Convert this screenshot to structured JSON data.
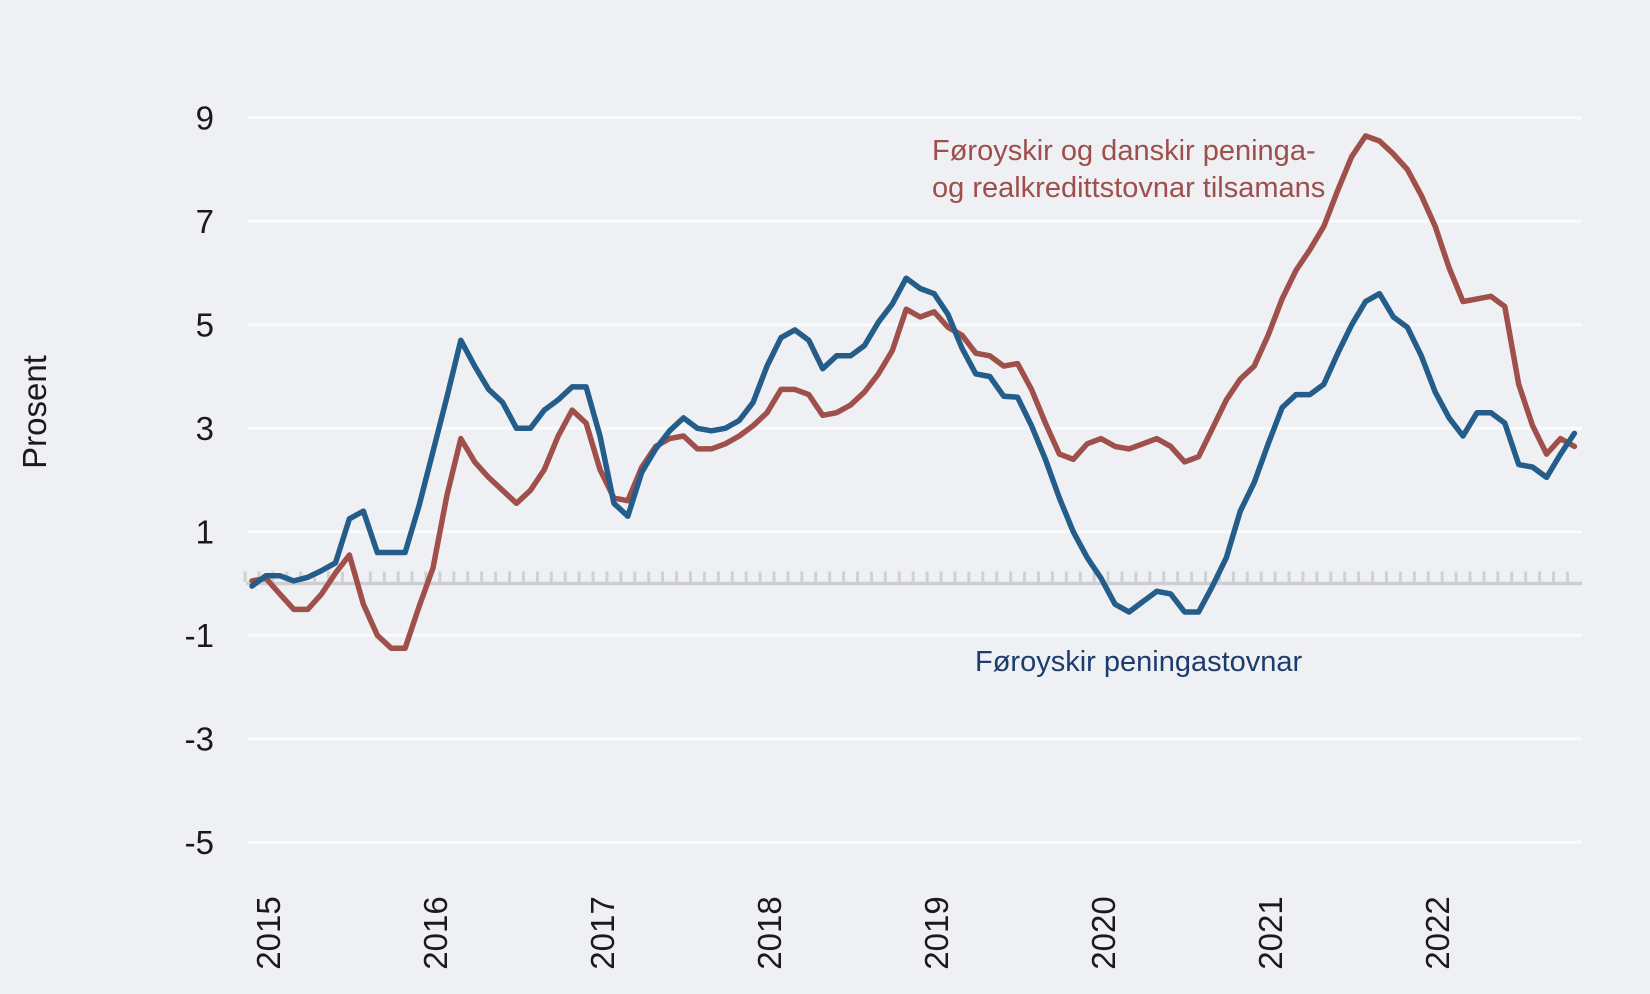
{
  "y_axis": {
    "title": "Prosent",
    "ticks": [
      9,
      7,
      5,
      3,
      1,
      -1,
      -3,
      -5
    ]
  },
  "x_axis": {
    "year_labels": [
      "2015",
      "2016",
      "2017",
      "2018",
      "2019",
      "2020",
      "2021",
      "2022"
    ]
  },
  "legend": {
    "combined_line1": "Føroyskir og danskir peninga-",
    "combined_line2": "og realkredittstovnar tilsamans",
    "faroese": "Føroyskir peningastovnar"
  },
  "colors": {
    "background": "#eef0f3",
    "gridline": "#fafbfd",
    "zero_line": "#cdced1",
    "zero_tick": "#cfd1d4",
    "axis_text": "#1a1a1a",
    "series_combined": "#a0504a",
    "series_faroese": "#245d89",
    "legend_combined_text": "#9e4f4b",
    "legend_faroese_text": "#1d3c6d"
  },
  "chart_data": {
    "type": "line",
    "title": "",
    "xlabel": "",
    "ylabel": "Prosent",
    "ylim": [
      -5,
      9
    ],
    "y_gridlines": [
      9,
      7,
      5,
      3,
      1,
      -1,
      -3,
      -5
    ],
    "zero_axis": true,
    "frequency": "monthly",
    "start_month": "2014-11",
    "end_month": "2022-10",
    "x_tick_years": [
      2015,
      2016,
      2017,
      2018,
      2019,
      2020,
      2021,
      2022
    ],
    "legend_position": "annotations-on-chart",
    "series": [
      {
        "name": "Føroyskir og danskir peninga- og realkredittstovnar tilsamans",
        "color_key": "series_combined",
        "values": [
          0.05,
          0.1,
          -0.2,
          -0.5,
          -0.5,
          -0.2,
          0.2,
          0.55,
          -0.4,
          -1.0,
          -1.25,
          -1.25,
          -0.45,
          0.3,
          1.7,
          2.8,
          2.35,
          2.05,
          1.8,
          1.55,
          1.8,
          2.2,
          2.85,
          3.35,
          3.1,
          2.2,
          1.65,
          1.6,
          2.25,
          2.65,
          2.8,
          2.85,
          2.6,
          2.6,
          2.7,
          2.85,
          3.05,
          3.3,
          3.75,
          3.75,
          3.65,
          3.25,
          3.3,
          3.45,
          3.7,
          4.05,
          4.5,
          5.3,
          5.15,
          5.25,
          4.95,
          4.8,
          4.45,
          4.4,
          4.2,
          4.25,
          3.75,
          3.1,
          2.5,
          2.4,
          2.7,
          2.8,
          2.65,
          2.6,
          2.7,
          2.8,
          2.65,
          2.35,
          2.45,
          3.0,
          3.55,
          3.95,
          4.2,
          4.8,
          5.5,
          6.05,
          6.45,
          6.9,
          7.6,
          8.25,
          8.65,
          8.55,
          8.3,
          8.0,
          7.5,
          6.9,
          6.1,
          5.45,
          5.5,
          5.55,
          5.35,
          3.85,
          3.05,
          2.5,
          2.8,
          2.65
        ]
      },
      {
        "name": "Føroyskir peningastovnar",
        "color_key": "series_faroese",
        "values": [
          -0.05,
          0.15,
          0.15,
          0.05,
          0.12,
          0.25,
          0.4,
          1.25,
          1.4,
          0.6,
          0.6,
          0.6,
          1.5,
          2.55,
          3.6,
          4.7,
          4.2,
          3.75,
          3.5,
          3.0,
          3.0,
          3.35,
          3.55,
          3.8,
          3.8,
          2.85,
          1.55,
          1.3,
          2.15,
          2.6,
          2.95,
          3.2,
          3.0,
          2.95,
          3.0,
          3.15,
          3.5,
          4.2,
          4.75,
          4.9,
          4.7,
          4.15,
          4.4,
          4.4,
          4.6,
          5.05,
          5.4,
          5.9,
          5.7,
          5.6,
          5.2,
          4.55,
          4.05,
          4.0,
          3.62,
          3.6,
          3.05,
          2.4,
          1.65,
          1.0,
          0.5,
          0.1,
          -0.4,
          -0.55,
          -0.35,
          -0.15,
          -0.2,
          -0.55,
          -0.55,
          -0.05,
          0.5,
          1.4,
          1.95,
          2.7,
          3.4,
          3.65,
          3.65,
          3.85,
          4.45,
          5.0,
          5.45,
          5.6,
          5.15,
          4.95,
          4.4,
          3.7,
          3.2,
          2.85,
          3.3,
          3.3,
          3.1,
          2.3,
          2.25,
          2.05,
          2.5,
          2.9
        ]
      }
    ]
  }
}
